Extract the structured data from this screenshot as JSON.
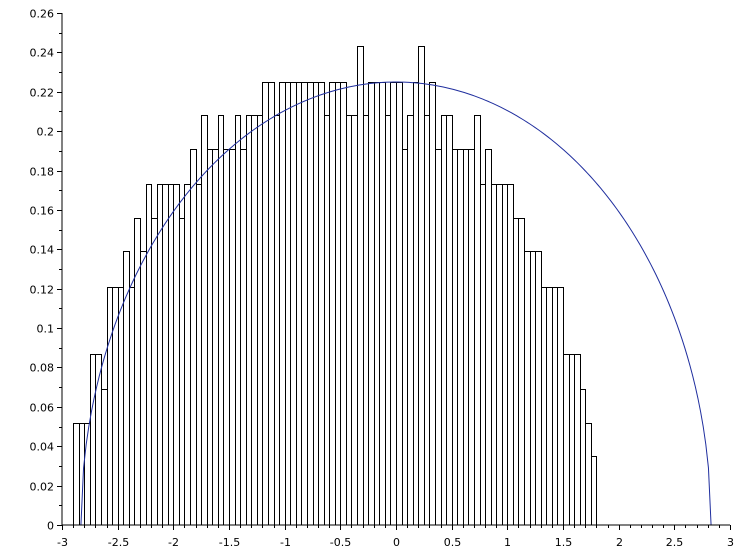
{
  "chart_data": {
    "type": "bar",
    "subtype": "histogram-with-density-curve",
    "title": "",
    "xlabel": "",
    "ylabel": "",
    "xlim": [
      -3,
      3
    ],
    "ylim": [
      0,
      0.26
    ],
    "grid": false,
    "x_ticks": [
      "-3",
      "-2.5",
      "-2",
      "-1.5",
      "-1",
      "-0.5",
      "0",
      "0.5",
      "1",
      "1.5",
      "2",
      "2.5",
      "3"
    ],
    "y_ticks": [
      "0",
      "0.02",
      "0.04",
      "0.06",
      "0.08",
      "0.1",
      "0.12",
      "0.14",
      "0.16",
      "0.18",
      "0.2",
      "0.22",
      "0.24",
      "0.26"
    ],
    "bin_width": 0.05,
    "bin_start": -2.9,
    "bar_values": [
      0.052,
      0.052,
      0.052,
      0.087,
      0.087,
      0.069,
      0.121,
      0.121,
      0.121,
      0.139,
      0.121,
      0.156,
      0.139,
      0.173,
      0.156,
      0.173,
      0.173,
      0.173,
      0.173,
      0.156,
      0.173,
      0.191,
      0.173,
      0.208,
      0.191,
      0.191,
      0.208,
      0.191,
      0.191,
      0.208,
      0.191,
      0.208,
      0.208,
      0.208,
      0.225,
      0.225,
      0.208,
      0.225,
      0.225,
      0.225,
      0.225,
      0.225,
      0.225,
      0.225,
      0.225,
      0.208,
      0.225,
      0.225,
      0.225,
      0.208,
      0.208,
      0.243,
      0.208,
      0.225,
      0.225,
      0.225,
      0.208,
      0.225,
      0.225,
      0.191,
      0.208,
      0.225,
      0.243,
      0.208,
      0.225,
      0.191,
      0.208,
      0.208,
      0.191,
      0.191,
      0.191,
      0.191,
      0.208,
      0.173,
      0.191,
      0.173,
      0.173,
      0.173,
      0.173,
      0.156,
      0.156,
      0.139,
      0.139,
      0.139,
      0.121,
      0.121,
      0.121,
      0.121,
      0.087,
      0.087,
      0.087,
      0.069,
      0.052,
      0.035
    ],
    "curve": {
      "type": "semicircle",
      "center": 0,
      "radius": 2.83,
      "color": "#1f2e9e"
    },
    "bar_fill": "#ffffff",
    "bar_stroke": "#000000"
  }
}
